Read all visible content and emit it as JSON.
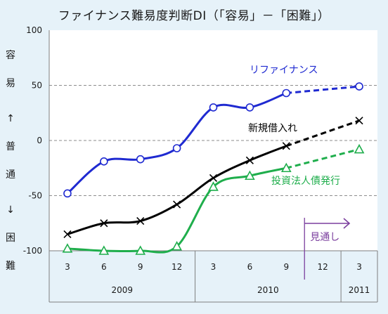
{
  "chart_data": {
    "type": "line",
    "title": "ファイナンス難易度判断DI（「容易」－「困難」）",
    "y_axis_label": [
      "容",
      "易",
      "↑",
      "普",
      "通",
      "↓",
      "困",
      "難"
    ],
    "ylim": [
      -100,
      100
    ],
    "y_ticks": [
      100,
      50,
      0,
      -50,
      -100
    ],
    "gridlines": [
      50,
      0,
      -50
    ],
    "x_tick_labels": [
      "3",
      "6",
      "9",
      "12",
      "3",
      "6",
      "9",
      "12",
      "3"
    ],
    "x_year_labels": [
      {
        "year": "2009",
        "from_index": 0,
        "to_index": 3
      },
      {
        "year": "2010",
        "from_index": 4,
        "to_index": 7
      },
      {
        "year": "2011",
        "from_index": 8,
        "to_index": 8
      }
    ],
    "forecast_label": "見通し",
    "forecast_from_index": 7,
    "series": [
      {
        "name": "リファイナンス",
        "color": "#1f2ad1",
        "marker": "circle",
        "values": [
          -48,
          -19,
          -17,
          -7,
          30,
          30,
          43,
          null,
          49
        ],
        "forecast_from_index": 6
      },
      {
        "name": "新規借入れ",
        "color": "#000000",
        "marker": "x",
        "values": [
          -85,
          -75,
          -73,
          -58,
          -34,
          -18,
          -5,
          null,
          18
        ],
        "forecast_from_index": 6
      },
      {
        "name": "投資法人債発行",
        "color": "#1fae4c",
        "marker": "triangle",
        "values": [
          -98,
          -100,
          -100,
          -96,
          -42,
          -32,
          -25,
          null,
          -8
        ],
        "forecast_from_index": 6
      }
    ]
  }
}
